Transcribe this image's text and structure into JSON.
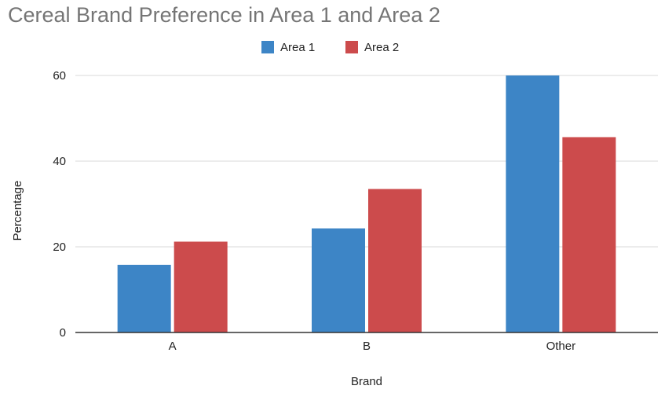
{
  "chart_data": {
    "type": "bar",
    "title": "Cereal Brand Preference in Area 1 and Area 2",
    "xlabel": "Brand",
    "ylabel": "Percentage",
    "categories": [
      "A",
      "B",
      "Other"
    ],
    "series": [
      {
        "name": "Area 1",
        "values": [
          15.8,
          24.3,
          60.0
        ],
        "color": "#3d85c6"
      },
      {
        "name": "Area 2",
        "values": [
          21.2,
          33.5,
          45.6
        ],
        "color": "#cc4b4c"
      }
    ],
    "ylim": [
      0,
      60
    ],
    "yticks": [
      0,
      20,
      40,
      60
    ],
    "grid": true,
    "legend_position": "top-center"
  }
}
